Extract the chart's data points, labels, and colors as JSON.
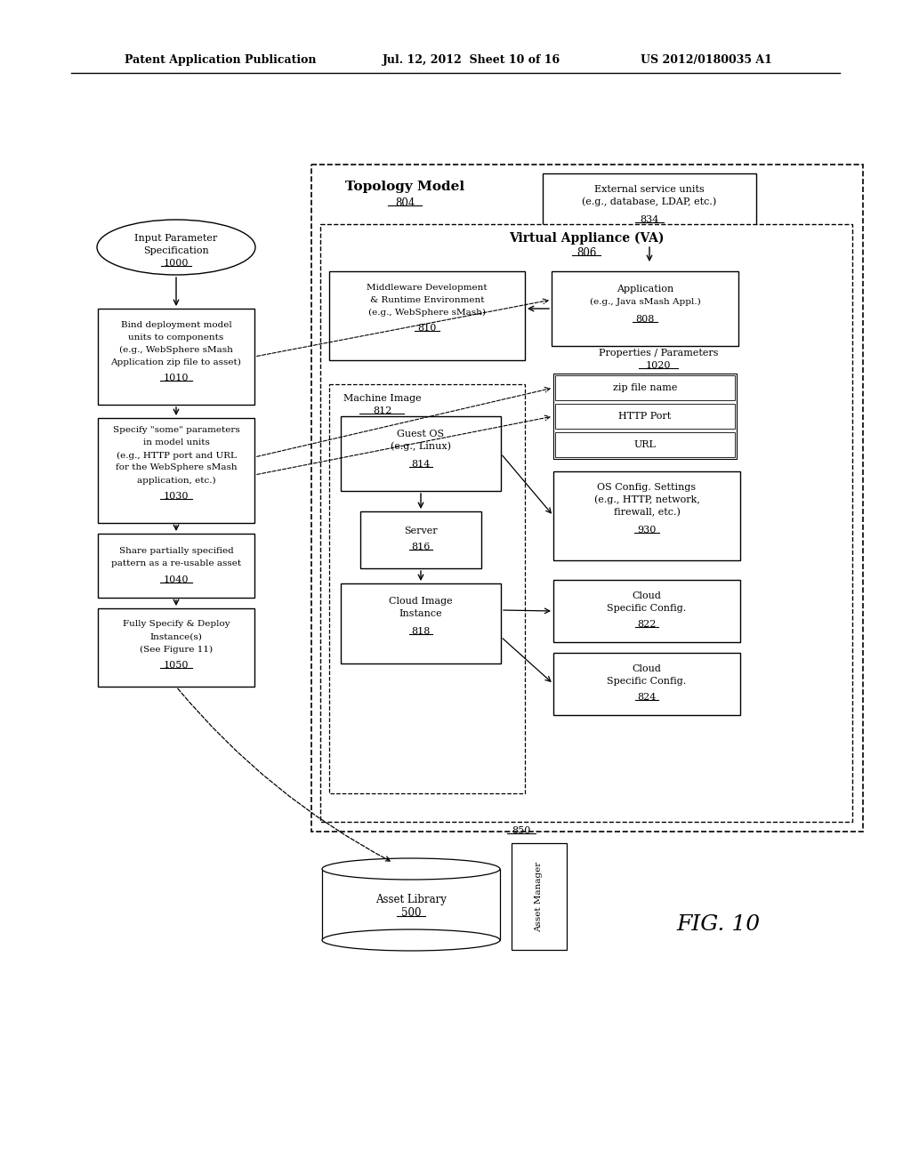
{
  "bg_color": "#ffffff",
  "header_text_left": "Patent Application Publication",
  "header_text_mid": "Jul. 12, 2012  Sheet 10 of 16",
  "header_text_right": "US 2012/0180035 A1",
  "fig_label": "FIG. 10"
}
